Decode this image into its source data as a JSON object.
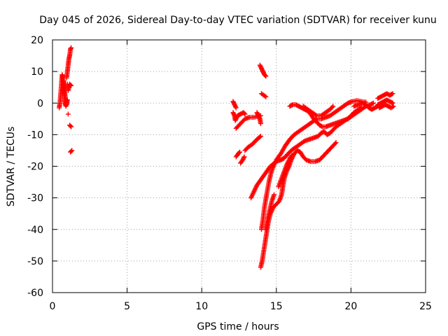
{
  "colors": {
    "series": "#ff0000",
    "grid": "#a0a0a0",
    "axis": "#000000",
    "background": "#ffffff"
  },
  "chart_data": {
    "type": "scatter",
    "title": "Day 045 of 2026, Sidereal Day-to-day VTEC variation (SDTVAR) for receiver kunu",
    "xlabel": "GPS time / hours",
    "ylabel": "SDTVAR / TECUs",
    "xlim": [
      0,
      25
    ],
    "ylim": [
      -60,
      20
    ],
    "xticks": [
      0,
      5,
      10,
      15,
      20,
      25
    ],
    "yticks": [
      -60,
      -50,
      -40,
      -30,
      -20,
      -10,
      0,
      10,
      20
    ],
    "grid": true,
    "marker": "+",
    "series": [
      {
        "name": "SDTVAR",
        "tracks": [
          {
            "points": [
              [
                0.45,
                -1.5
              ],
              [
                0.5,
                0
              ],
              [
                0.55,
                3
              ],
              [
                0.6,
                6
              ],
              [
                0.65,
                9
              ],
              [
                0.7,
                8
              ],
              [
                0.75,
                5
              ],
              [
                0.8,
                2
              ],
              [
                0.85,
                0
              ],
              [
                0.9,
                -1
              ]
            ]
          },
          {
            "points": [
              [
                0.75,
                7
              ],
              [
                0.8,
                4
              ],
              [
                0.85,
                2
              ],
              [
                0.95,
                -0.5
              ],
              [
                1.0,
                1
              ]
            ]
          },
          {
            "points": [
              [
                0.95,
                8
              ],
              [
                1.0,
                10
              ],
              [
                1.05,
                12
              ],
              [
                1.1,
                14
              ],
              [
                1.15,
                15
              ],
              [
                1.2,
                17
              ],
              [
                1.25,
                17.5
              ]
            ]
          },
          {
            "points": [
              [
                1.0,
                6
              ],
              [
                1.05,
                4
              ],
              [
                1.15,
                6
              ],
              [
                1.25,
                5.5
              ]
            ]
          },
          {
            "points": [
              [
                1.05,
                -3.5
              ]
            ]
          },
          {
            "points": [
              [
                1.15,
                -7
              ],
              [
                1.25,
                -7.5
              ]
            ]
          },
          {
            "points": [
              [
                1.2,
                -15.5
              ],
              [
                1.3,
                -15
              ]
            ]
          },
          {
            "points": [
              [
                12.1,
                0.5
              ],
              [
                12.2,
                -0.5
              ],
              [
                12.3,
                -1.5
              ]
            ]
          },
          {
            "points": [
              [
                12.1,
                -3
              ],
              [
                12.2,
                -4
              ],
              [
                12.25,
                -5.5
              ],
              [
                12.4,
                -4
              ],
              [
                12.6,
                -3.5
              ],
              [
                12.8,
                -3
              ],
              [
                12.9,
                -3.5
              ]
            ]
          },
          {
            "points": [
              [
                12.3,
                -8
              ],
              [
                12.5,
                -7
              ],
              [
                12.7,
                -6
              ],
              [
                12.9,
                -5
              ],
              [
                13.2,
                -4.5
              ],
              [
                13.5,
                -4.5
              ],
              [
                13.8,
                -4.2
              ],
              [
                13.95,
                -4
              ]
            ]
          },
          {
            "points": [
              [
                13.7,
                -3
              ],
              [
                13.8,
                -4
              ],
              [
                13.9,
                -5
              ],
              [
                13.95,
                -6.5
              ]
            ]
          },
          {
            "points": [
              [
                12.3,
                -17
              ],
              [
                12.45,
                -16
              ],
              [
                12.55,
                -15.5
              ]
            ]
          },
          {
            "points": [
              [
                12.6,
                -19
              ],
              [
                12.75,
                -18
              ],
              [
                12.85,
                -17
              ]
            ]
          },
          {
            "points": [
              [
                12.9,
                -15
              ],
              [
                13.1,
                -14
              ],
              [
                13.4,
                -13
              ],
              [
                13.7,
                -11.5
              ],
              [
                13.95,
                -10.5
              ]
            ]
          },
          {
            "points": [
              [
                13.9,
                12
              ],
              [
                14.0,
                11
              ],
              [
                14.1,
                10
              ],
              [
                14.2,
                9
              ],
              [
                14.3,
                8.5
              ]
            ]
          },
          {
            "points": [
              [
                14.0,
                3
              ],
              [
                14.15,
                2.5
              ],
              [
                14.3,
                2
              ]
            ]
          },
          {
            "points": [
              [
                13.3,
                -30
              ],
              [
                13.5,
                -28
              ],
              [
                13.7,
                -26
              ],
              [
                14.0,
                -24
              ],
              [
                14.3,
                -22
              ],
              [
                14.6,
                -20
              ],
              [
                15.0,
                -18.5
              ],
              [
                15.3,
                -18
              ],
              [
                15.5,
                -17.5
              ],
              [
                15.8,
                -16
              ],
              [
                16.0,
                -15
              ],
              [
                16.3,
                -14
              ],
              [
                16.6,
                -13
              ],
              [
                16.9,
                -12
              ],
              [
                17.2,
                -11.5
              ],
              [
                17.5,
                -11
              ],
              [
                17.8,
                -10.5
              ],
              [
                18.0,
                -9.5
              ],
              [
                18.2,
                -9
              ],
              [
                18.4,
                -10
              ],
              [
                18.6,
                -9.5
              ],
              [
                18.8,
                -8.5
              ],
              [
                19.0,
                -7.5
              ],
              [
                19.3,
                -6.5
              ],
              [
                19.6,
                -5.5
              ],
              [
                19.9,
                -4.5
              ],
              [
                20.2,
                -3
              ],
              [
                20.5,
                -2
              ],
              [
                20.7,
                -1.5
              ]
            ]
          },
          {
            "points": [
              [
                14.0,
                -40
              ],
              [
                14.1,
                -37
              ],
              [
                14.2,
                -33
              ],
              [
                14.35,
                -29
              ],
              [
                14.5,
                -25
              ],
              [
                14.65,
                -22
              ],
              [
                14.8,
                -20
              ],
              [
                15.0,
                -18
              ],
              [
                15.3,
                -16
              ],
              [
                15.6,
                -13.5
              ],
              [
                15.9,
                -11.5
              ],
              [
                16.2,
                -10
              ],
              [
                16.5,
                -9
              ],
              [
                16.8,
                -8
              ],
              [
                17.1,
                -7
              ],
              [
                17.4,
                -6
              ],
              [
                17.7,
                -5
              ],
              [
                18.0,
                -5
              ],
              [
                18.3,
                -4.5
              ],
              [
                18.6,
                -4
              ],
              [
                18.9,
                -3
              ],
              [
                19.2,
                -2
              ],
              [
                19.5,
                -1
              ],
              [
                19.8,
                0
              ],
              [
                20.1,
                0.5
              ],
              [
                20.4,
                0.8
              ],
              [
                20.7,
                0.5
              ],
              [
                21.0,
                0.3
              ]
            ]
          },
          {
            "points": [
              [
                13.95,
                -52
              ],
              [
                14.05,
                -50
              ],
              [
                14.15,
                -47
              ],
              [
                14.25,
                -44
              ],
              [
                14.35,
                -41
              ],
              [
                14.45,
                -38
              ],
              [
                14.6,
                -35
              ],
              [
                14.8,
                -33
              ],
              [
                15.0,
                -32
              ],
              [
                15.2,
                -31
              ],
              [
                15.35,
                -29
              ],
              [
                15.45,
                -26
              ],
              [
                15.55,
                -23.5
              ],
              [
                15.7,
                -21.5
              ],
              [
                15.85,
                -20
              ],
              [
                16.0,
                -18
              ],
              [
                16.2,
                -16
              ],
              [
                16.4,
                -15
              ],
              [
                16.6,
                -15.5
              ],
              [
                16.8,
                -17
              ],
              [
                17.0,
                -18
              ],
              [
                17.3,
                -18.5
              ],
              [
                17.6,
                -18.5
              ],
              [
                17.9,
                -18
              ],
              [
                18.2,
                -16.5
              ],
              [
                18.5,
                -15
              ],
              [
                18.8,
                -13.5
              ],
              [
                19.0,
                -12.5
              ]
            ]
          },
          {
            "points": [
              [
                14.3,
                -40
              ],
              [
                14.4,
                -37
              ],
              [
                14.55,
                -34
              ],
              [
                14.7,
                -31
              ],
              [
                14.85,
                -29
              ]
            ]
          },
          {
            "points": [
              [
                15.15,
                -26.5
              ],
              [
                15.3,
                -24.5
              ],
              [
                15.5,
                -22
              ],
              [
                15.7,
                -19.5
              ],
              [
                15.9,
                -17.5
              ],
              [
                16.05,
                -16.5
              ]
            ]
          },
          {
            "points": [
              [
                15.9,
                -1
              ],
              [
                16.1,
                -0.5
              ],
              [
                16.3,
                -0.5
              ],
              [
                16.5,
                -1
              ],
              [
                16.7,
                -1.5
              ],
              [
                16.9,
                -2
              ],
              [
                17.1,
                -2.5
              ],
              [
                17.3,
                -3.5
              ],
              [
                17.5,
                -5
              ],
              [
                17.7,
                -6
              ],
              [
                17.9,
                -7
              ],
              [
                18.1,
                -7.5
              ],
              [
                18.3,
                -7.5
              ],
              [
                18.6,
                -7
              ],
              [
                18.9,
                -6.5
              ],
              [
                19.2,
                -6
              ],
              [
                19.5,
                -5.5
              ],
              [
                19.8,
                -5
              ],
              [
                20.1,
                -4
              ],
              [
                20.4,
                -3
              ],
              [
                20.7,
                -2
              ],
              [
                21.0,
                -1
              ],
              [
                21.3,
                -0.5
              ],
              [
                21.5,
                0
              ]
            ]
          },
          {
            "points": [
              [
                16.8,
                -1
              ],
              [
                17.1,
                -2
              ],
              [
                17.4,
                -3
              ],
              [
                17.7,
                -4
              ],
              [
                18.0,
                -4
              ],
              [
                18.3,
                -3
              ],
              [
                18.6,
                -2
              ],
              [
                18.8,
                -1
              ]
            ]
          },
          {
            "points": [
              [
                20.2,
                -1
              ],
              [
                20.5,
                -0.5
              ],
              [
                20.8,
                0
              ],
              [
                21.0,
                -0.5
              ],
              [
                21.2,
                -1.5
              ],
              [
                21.4,
                -2
              ],
              [
                21.6,
                -1.5
              ],
              [
                21.8,
                -1
              ]
            ]
          },
          {
            "points": [
              [
                21.8,
                -0.5
              ],
              [
                22.0,
                0
              ],
              [
                22.2,
                0.5
              ],
              [
                22.4,
                1
              ],
              [
                22.6,
                0.5
              ],
              [
                22.8,
                0
              ]
            ]
          },
          {
            "points": [
              [
                21.8,
                1.5
              ],
              [
                22.0,
                2
              ],
              [
                22.2,
                2.5
              ],
              [
                22.4,
                3
              ],
              [
                22.6,
                2.5
              ],
              [
                22.8,
                3
              ]
            ]
          },
          {
            "points": [
              [
                21.9,
                -1.5
              ],
              [
                22.1,
                -1
              ],
              [
                22.3,
                -0.5
              ],
              [
                22.5,
                -1
              ],
              [
                22.7,
                -1.5
              ],
              [
                22.85,
                -1
              ]
            ]
          }
        ]
      }
    ]
  }
}
